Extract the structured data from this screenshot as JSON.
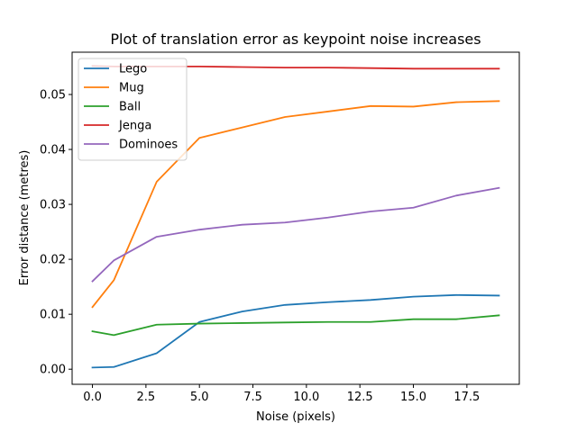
{
  "chart_data": {
    "type": "line",
    "title": "Plot of translation error as keypoint noise increases",
    "xlabel": "Noise (pixels)",
    "ylabel": "Error distance (metres)",
    "xlim": [
      -0.95,
      19.95
    ],
    "ylim": [
      -0.00275,
      0.0577
    ],
    "xticks": [
      0.0,
      2.5,
      5.0,
      7.5,
      10.0,
      12.5,
      15.0,
      17.5
    ],
    "xtick_labels": [
      "0.0",
      "2.5",
      "5.0",
      "7.5",
      "10.0",
      "12.5",
      "15.0",
      "17.5"
    ],
    "yticks": [
      0.0,
      0.01,
      0.02,
      0.03,
      0.04,
      0.05
    ],
    "ytick_labels": [
      "0.00",
      "0.01",
      "0.02",
      "0.03",
      "0.04",
      "0.05"
    ],
    "grid": false,
    "legend_position": "upper-left",
    "x": [
      0,
      1,
      3,
      5,
      7,
      9,
      11,
      13,
      15,
      17,
      19
    ],
    "series": [
      {
        "name": "Lego",
        "color": "#1f77b4",
        "values": [
          0.0003,
          0.0004,
          0.0029,
          0.0086,
          0.0105,
          0.0117,
          0.0122,
          0.0126,
          0.0132,
          0.0135,
          0.0134
        ]
      },
      {
        "name": "Mug",
        "color": "#ff7f0e",
        "values": [
          0.0113,
          0.0162,
          0.0341,
          0.0421,
          0.044,
          0.0459,
          0.0469,
          0.0479,
          0.0478,
          0.0486,
          0.0488
        ]
      },
      {
        "name": "Ball",
        "color": "#2ca02c",
        "values": [
          0.0069,
          0.0062,
          0.0081,
          0.0083,
          0.0084,
          0.0085,
          0.0086,
          0.0086,
          0.0091,
          0.0091,
          0.0098
        ]
      },
      {
        "name": "Jenga",
        "color": "#d62728",
        "values": [
          0.0552,
          0.0551,
          0.0551,
          0.0551,
          0.055,
          0.0549,
          0.0549,
          0.0548,
          0.0547,
          0.0547,
          0.0547
        ]
      },
      {
        "name": "Dominoes",
        "color": "#9467bd",
        "values": [
          0.016,
          0.0198,
          0.0241,
          0.0254,
          0.0263,
          0.0267,
          0.0276,
          0.0287,
          0.0294,
          0.0316,
          0.033
        ]
      }
    ]
  }
}
